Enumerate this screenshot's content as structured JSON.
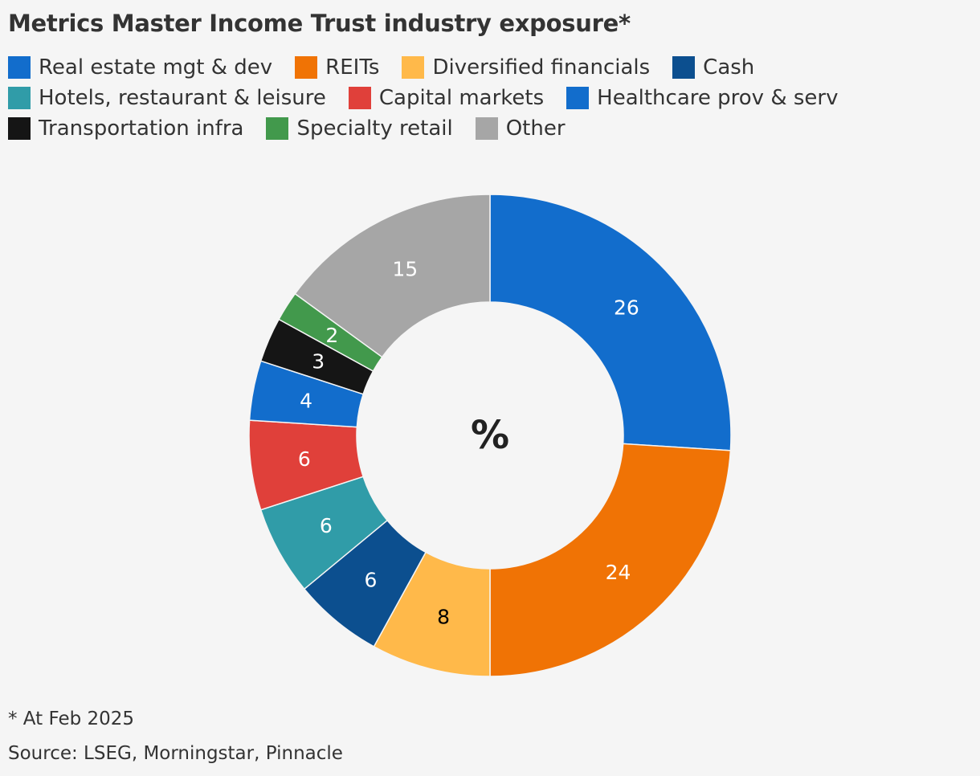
{
  "title": "Metrics Master Income Trust industry exposure*",
  "footnote": "* At Feb 2025",
  "source": "Source: LSEG, Morningstar, Pinnacle",
  "chart_data": {
    "type": "pie",
    "donut": true,
    "center_label": "%",
    "legend_position": "top",
    "categories": [
      "Real estate mgt & dev",
      "REITs",
      "Diversified financials",
      "Cash",
      "Hotels, restaurant & leisure",
      "Capital markets",
      "Healthcare prov & serv",
      "Transportation infra",
      "Specialty retail",
      "Other"
    ],
    "values": [
      26,
      24,
      8,
      6,
      6,
      6,
      4,
      3,
      2,
      15
    ],
    "colors": [
      "#126dcc",
      "#f07305",
      "#ffb94a",
      "#0c4f8f",
      "#309ca8",
      "#e0403a",
      "#126dcc",
      "#151515",
      "#42994c",
      "#a6a6a6"
    ],
    "label_colors": [
      "#ffffff",
      "#ffffff",
      "#000000",
      "#ffffff",
      "#ffffff",
      "#ffffff",
      "#ffffff",
      "#ffffff",
      "#ffffff",
      "#ffffff"
    ]
  }
}
